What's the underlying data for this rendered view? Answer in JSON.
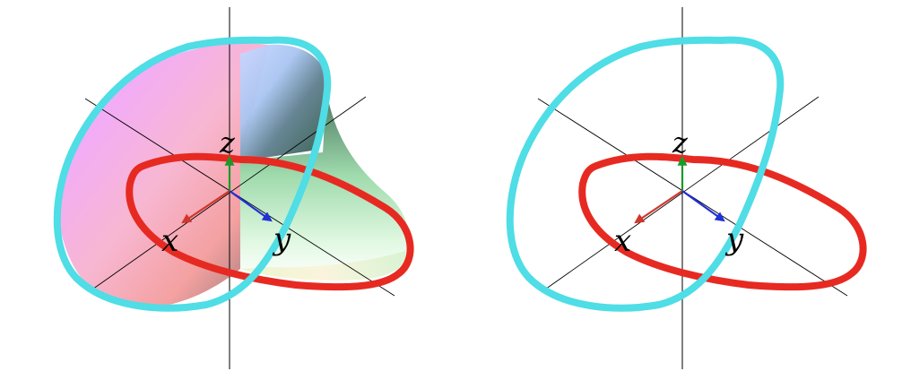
{
  "figure": {
    "panels": [
      {
        "id": "with-surface",
        "has_surface": true,
        "axis_labels": {
          "x": "x",
          "y": "y",
          "z": "z"
        }
      },
      {
        "id": "curves-only",
        "has_surface": false,
        "axis_labels": {
          "x": "x",
          "y": "y",
          "z": "z"
        }
      }
    ],
    "colors": {
      "cyan_curve": "#4fdde6",
      "red_curve": "#e62a22",
      "x_axis_arrow": "#d0362c",
      "y_axis_arrow": "#2230d8",
      "z_axis_arrow": "#1a9a2a",
      "axis_lines": "#000000",
      "background": "#ffffff"
    }
  }
}
